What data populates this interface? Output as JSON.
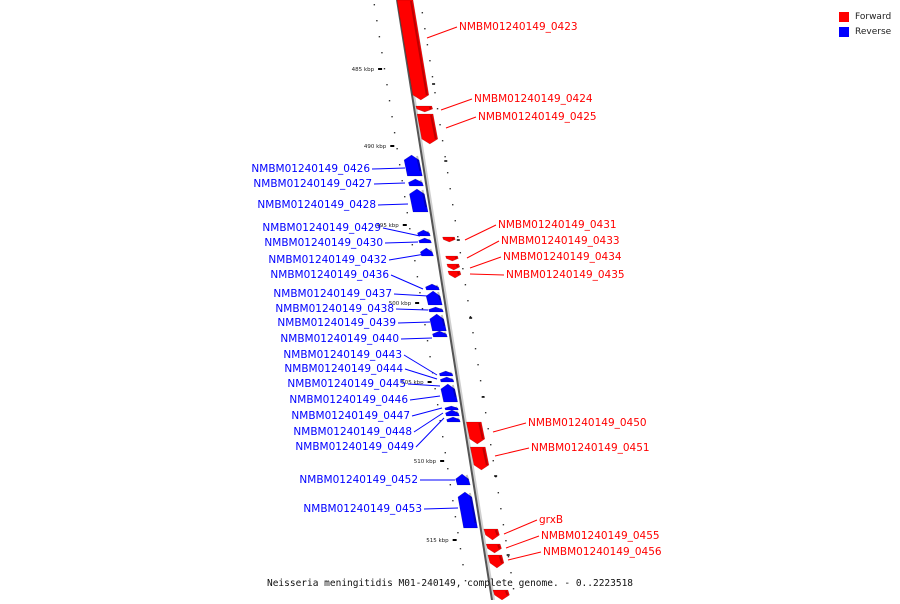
{
  "legend": {
    "forward": {
      "label": "Forward",
      "color": "#ff0000"
    },
    "reverse": {
      "label": "Reverse",
      "color": "#0000ff"
    }
  },
  "caption": "Neisseria meningitidis M01-240149, complete genome. - 0..2223518",
  "ticks": [
    "485 kbp",
    "490 kbp",
    "495 kbp",
    "500 kbp",
    "505 kbp",
    "510 kbp",
    "515 kbp"
  ],
  "features": [
    {
      "name": "NMBM01240149_0423",
      "strand": "forward"
    },
    {
      "name": "NMBM01240149_0424",
      "strand": "forward"
    },
    {
      "name": "NMBM01240149_0425",
      "strand": "forward"
    },
    {
      "name": "NMBM01240149_0426",
      "strand": "reverse"
    },
    {
      "name": "NMBM01240149_0427",
      "strand": "reverse"
    },
    {
      "name": "NMBM01240149_0428",
      "strand": "reverse"
    },
    {
      "name": "NMBM01240149_0429",
      "strand": "reverse"
    },
    {
      "name": "NMBM01240149_0430",
      "strand": "reverse"
    },
    {
      "name": "NMBM01240149_0431",
      "strand": "forward"
    },
    {
      "name": "NMBM01240149_0432",
      "strand": "reverse"
    },
    {
      "name": "NMBM01240149_0433",
      "strand": "forward"
    },
    {
      "name": "NMBM01240149_0434",
      "strand": "forward"
    },
    {
      "name": "NMBM01240149_0435",
      "strand": "forward"
    },
    {
      "name": "NMBM01240149_0436",
      "strand": "reverse"
    },
    {
      "name": "NMBM01240149_0437",
      "strand": "reverse"
    },
    {
      "name": "NMBM01240149_0438",
      "strand": "reverse"
    },
    {
      "name": "NMBM01240149_0439",
      "strand": "reverse"
    },
    {
      "name": "NMBM01240149_0440",
      "strand": "reverse"
    },
    {
      "name": "NMBM01240149_0443",
      "strand": "reverse"
    },
    {
      "name": "NMBM01240149_0444",
      "strand": "reverse"
    },
    {
      "name": "NMBM01240149_0445",
      "strand": "reverse"
    },
    {
      "name": "NMBM01240149_0446",
      "strand": "reverse"
    },
    {
      "name": "NMBM01240149_0447",
      "strand": "reverse"
    },
    {
      "name": "NMBM01240149_0448",
      "strand": "reverse"
    },
    {
      "name": "NMBM01240149_0449",
      "strand": "reverse"
    },
    {
      "name": "NMBM01240149_0450",
      "strand": "forward"
    },
    {
      "name": "NMBM01240149_0451",
      "strand": "forward"
    },
    {
      "name": "NMBM01240149_0452",
      "strand": "reverse"
    },
    {
      "name": "NMBM01240149_0453",
      "strand": "reverse"
    },
    {
      "name": "grxB",
      "strand": "forward"
    },
    {
      "name": "NMBM01240149_0455",
      "strand": "forward"
    },
    {
      "name": "NMBM01240149_0456",
      "strand": "forward"
    }
  ]
}
